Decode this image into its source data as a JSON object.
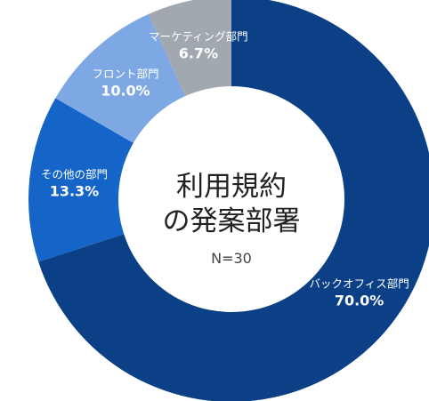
{
  "chart_data": {
    "type": "pie",
    "variant": "donut",
    "title_lines": [
      "利用規約",
      "の発案部署"
    ],
    "sample_size": "N=30",
    "slices": [
      {
        "label": "バックオフィス部門",
        "value": 70.0,
        "value_text": "70.0%",
        "color": "#0b3f86"
      },
      {
        "label": "その他の部門",
        "value": 13.3,
        "value_text": "13.3%",
        "color": "#1565c8"
      },
      {
        "label": "フロント部門",
        "value": 10.0,
        "value_text": "10.0%",
        "color": "#7ea8e3"
      },
      {
        "label": "マーケティング部門",
        "value": 6.7,
        "value_text": "6.7%",
        "color": "#a2a8b0"
      }
    ],
    "start": "12 o'clock",
    "direction": "clockwise"
  }
}
